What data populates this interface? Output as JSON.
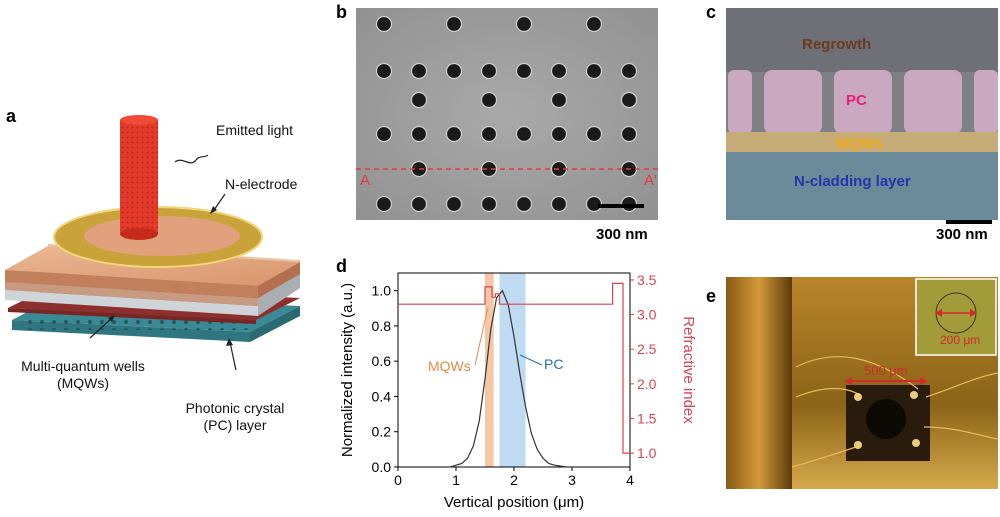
{
  "panels": {
    "a": {
      "letter": "a",
      "labels": {
        "emitted_light": "Emitted light",
        "n_electrode": "N-electrode",
        "mqw_line1": "Multi-quantum wells",
        "mqw_line2": "(MQWs)",
        "pc_line1": "Photonic crystal",
        "pc_line2": "(PC) layer"
      }
    },
    "b": {
      "letter": "b",
      "marker_left": "A",
      "marker_right": "A'",
      "scale_bar": "300 nm"
    },
    "c": {
      "letter": "c",
      "regrowth": "Regrowth",
      "pc": "PC",
      "mqws": "MQWs",
      "cladding": "N-cladding layer",
      "scale_bar": "300 nm"
    },
    "d": {
      "letter": "d",
      "mqws_label": "MQWs",
      "pc_label": "PC"
    },
    "e": {
      "letter": "e",
      "size_label": "500 μm",
      "inset_label": "200 μm"
    }
  },
  "colors": {
    "mqw_band": "#f2b48a",
    "pc_band": "#a9cfee",
    "index_line": "#d9444f",
    "intensity_line": "#333333",
    "pc_text": "#1f6fb5",
    "mqw_text": "#e58a4a"
  },
  "chart_data": {
    "type": "line",
    "xlabel": "Vertical position (μm)",
    "ylabel": "Normalized intensity (a.u.)",
    "y2label": "Refractive index",
    "xlim": [
      0,
      4
    ],
    "ylim": [
      0,
      1.1
    ],
    "y2lim": [
      0.8,
      3.6
    ],
    "x_ticks": [
      "0",
      "1",
      "2",
      "3",
      "4"
    ],
    "y_ticks": [
      "0.0",
      "0.2",
      "0.4",
      "0.6",
      "0.8",
      "1.0"
    ],
    "y2_ticks": [
      "1.0",
      "1.5",
      "2.0",
      "2.5",
      "3.0",
      "3.5"
    ],
    "bands": [
      {
        "name": "MQWs",
        "x0": 1.5,
        "x1": 1.65
      },
      {
        "name": "PC",
        "x0": 1.75,
        "x1": 2.2
      }
    ],
    "series": [
      {
        "name": "Normalized intensity",
        "axis": "left",
        "x": [
          0.9,
          1.0,
          1.1,
          1.2,
          1.3,
          1.4,
          1.5,
          1.6,
          1.7,
          1.8,
          1.9,
          2.0,
          2.1,
          2.2,
          2.3,
          2.4,
          2.5,
          2.6,
          2.7,
          2.8,
          2.9,
          3.0
        ],
        "y": [
          0.0,
          0.01,
          0.02,
          0.05,
          0.12,
          0.26,
          0.5,
          0.78,
          0.96,
          1.0,
          0.92,
          0.74,
          0.53,
          0.34,
          0.19,
          0.1,
          0.05,
          0.02,
          0.01,
          0.005,
          0.0,
          0.0
        ]
      },
      {
        "name": "Refractive index",
        "axis": "right",
        "x": [
          0.0,
          1.5,
          1.5,
          1.62,
          1.62,
          1.68,
          1.68,
          1.75,
          1.75,
          2.2,
          2.2,
          3.7,
          3.7,
          3.88,
          3.88,
          3.98,
          3.98,
          4.0
        ],
        "y": [
          3.15,
          3.15,
          3.4,
          3.4,
          3.25,
          3.25,
          3.3,
          3.3,
          3.15,
          3.15,
          3.15,
          3.15,
          3.45,
          3.45,
          1.0,
          1.0,
          1.0,
          1.0
        ]
      }
    ]
  }
}
